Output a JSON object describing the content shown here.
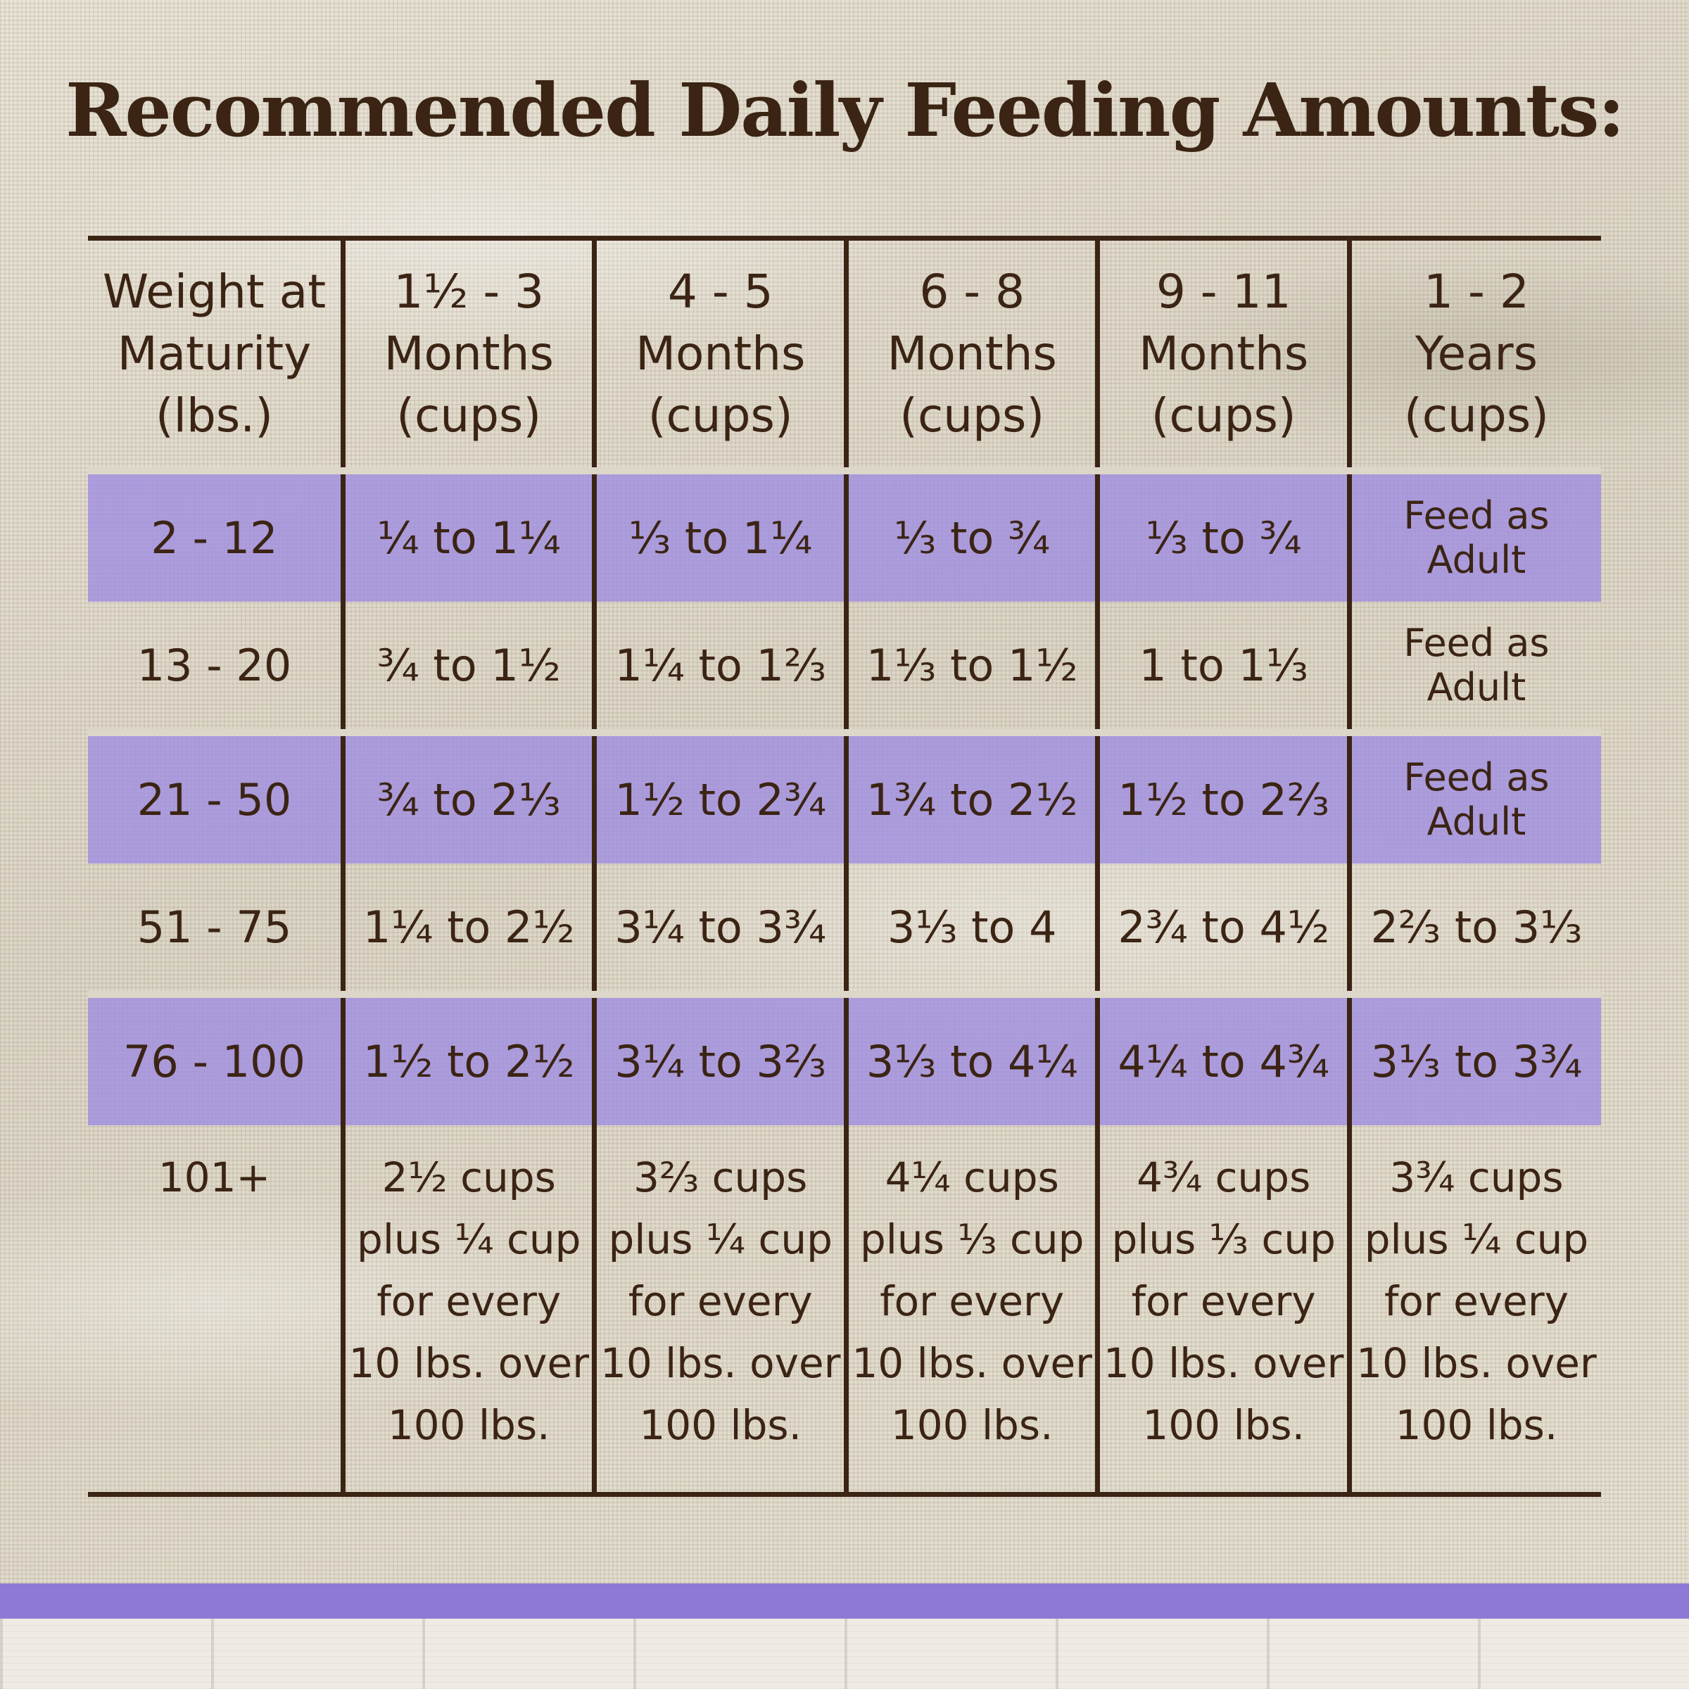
{
  "title": "Recommended Daily Feeding Amounts:",
  "colors": {
    "text": "#3b2414",
    "band": "#9e8ce2",
    "bottom_bar": "#8f79d6"
  },
  "headers": [
    "Weight at\nMaturity\n(lbs.)",
    "1½ - 3\nMonths\n(cups)",
    "4 - 5\nMonths\n(cups)",
    "6 - 8\nMonths\n(cups)",
    "9 - 11\nMonths\n(cups)",
    "1 - 2\nYears\n(cups)"
  ],
  "rows": [
    [
      "2 - 12",
      "¼ to 1¼",
      "⅓ to 1¼",
      "⅓ to ¾",
      "⅓ to ¾",
      "Feed as Adult"
    ],
    [
      "13 - 20",
      "¾ to 1½",
      "1¼ to 1⅔",
      "1⅓ to 1½",
      "1 to 1⅓",
      "Feed as Adult"
    ],
    [
      "21 - 50",
      "¾ to 2⅓",
      "1½ to 2¾",
      "1¾ to 2½",
      "1½ to 2⅔",
      "Feed as Adult"
    ],
    [
      "51 - 75",
      "1¼ to 2½",
      "3¼ to 3¾",
      "3⅓ to 4",
      "2¾ to 4½",
      "2⅔ to 3⅓"
    ],
    [
      "76 - 100",
      "1½ to 2½",
      "3¼ to 3⅔",
      "3⅓ to 4¼",
      "4¼ to 4¾",
      "3⅓ to 3¾"
    ],
    [
      "101+",
      "2½ cups\nplus ¼ cup\nfor every\n10 lbs. over\n100 lbs.",
      "3⅔ cups\nplus ¼ cup\nfor every\n10 lbs. over\n100 lbs.",
      "4¼ cups\nplus ⅓ cup\nfor every\n10 lbs. over\n100 lbs.",
      "4¾ cups\nplus ⅓ cup\nfor every\n10 lbs. over\n100 lbs.",
      "3¾ cups\nplus ¼ cup\nfor every\n10 lbs. over\n100 lbs."
    ]
  ]
}
